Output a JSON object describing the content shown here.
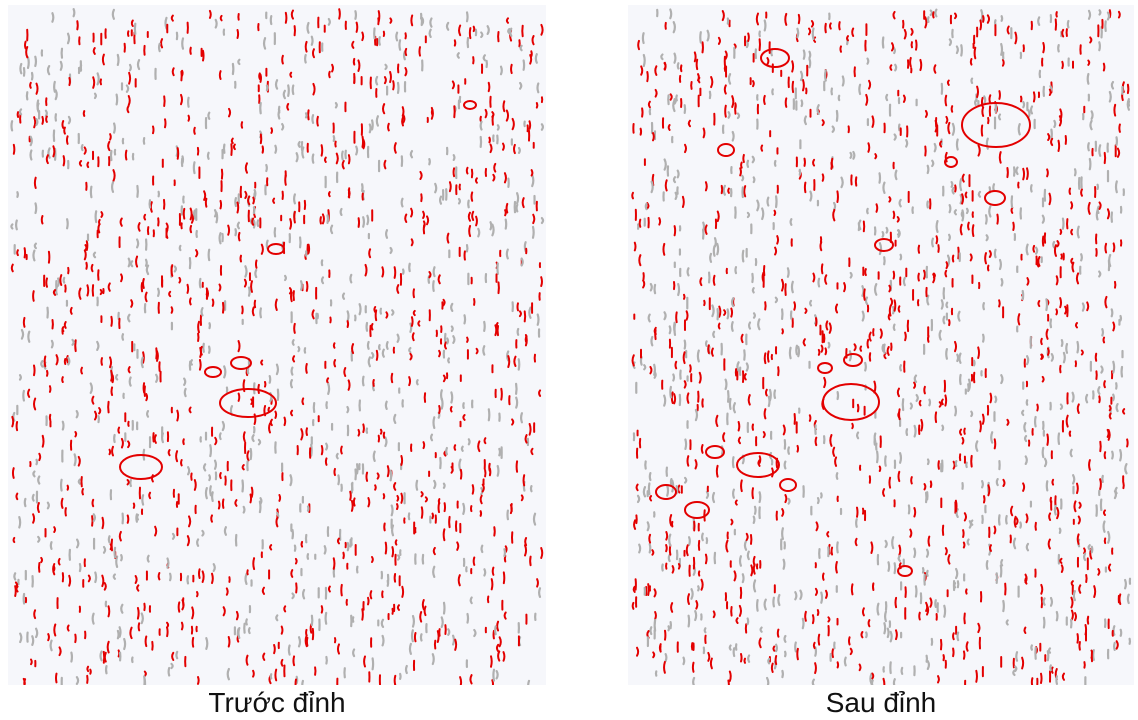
{
  "panels": [
    {
      "caption": "Trước đỉnh"
    },
    {
      "caption": "Sau đỉnh"
    }
  ]
}
